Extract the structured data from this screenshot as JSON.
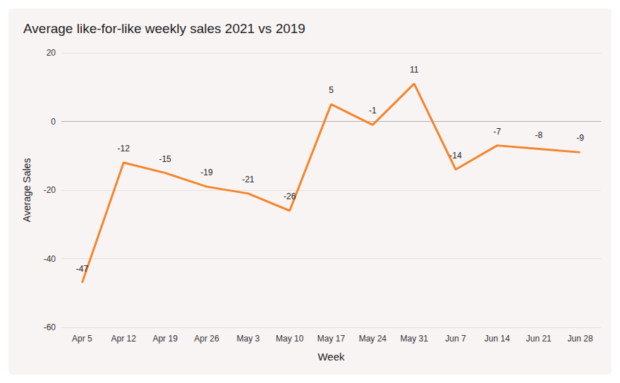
{
  "chart_data": {
    "type": "line",
    "title": "Average like-for-like weekly sales 2021 vs 2019",
    "x_label": "Week",
    "y_label": "Average Sales",
    "categories": [
      "Apr 5",
      "Apr 12",
      "Apr 19",
      "Apr 26",
      "May 3",
      "May 10",
      "May 17",
      "May 24",
      "May 31",
      "Jun 7",
      "Jun 14",
      "Jun 21",
      "Jun 28"
    ],
    "values": [
      -47,
      -12,
      -15,
      -19,
      -21,
      -26,
      5,
      -1,
      11,
      -14,
      -7,
      -8,
      -9
    ],
    "color": "#f5842a",
    "ylim": [
      -60,
      20
    ],
    "yticks": [
      -60,
      -40,
      -20,
      0,
      20
    ],
    "grid": true,
    "data_labels": true
  }
}
